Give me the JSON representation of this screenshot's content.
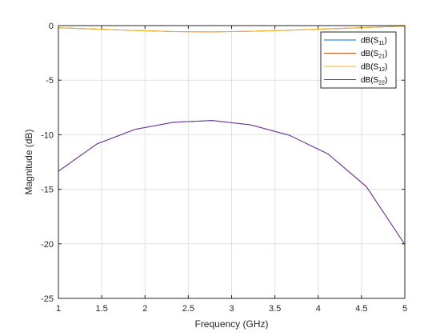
{
  "chart_data": {
    "type": "line",
    "title": "",
    "xlabel": "Frequency (GHz)",
    "ylabel": "Magnitude (dB)",
    "xlim": [
      1,
      5
    ],
    "ylim": [
      -25,
      0
    ],
    "x_ticks": [
      "1",
      "1.5",
      "2",
      "2.5",
      "3",
      "3.5",
      "4",
      "4.5",
      "5"
    ],
    "y_ticks": [
      "0",
      "-5",
      "-10",
      "-15",
      "-20",
      "-25"
    ],
    "grid": true,
    "legend_position": "top-right",
    "x": [
      1.0,
      1.444,
      1.889,
      2.333,
      2.778,
      3.222,
      3.667,
      4.111,
      4.556,
      5.0
    ],
    "series": [
      {
        "name": "dB(S11)",
        "color": "#0072BD",
        "values": [
          -13.35,
          -10.85,
          -9.5,
          -8.85,
          -8.7,
          -9.1,
          -10.05,
          -11.75,
          -14.75,
          -20.05
        ]
      },
      {
        "name": "dB(S21)",
        "color": "#D95319",
        "values": [
          -0.2,
          -0.32,
          -0.45,
          -0.55,
          -0.58,
          -0.52,
          -0.42,
          -0.3,
          -0.17,
          -0.05
        ]
      },
      {
        "name": "dB(S12)",
        "color": "#EDB120",
        "values": [
          -0.2,
          -0.32,
          -0.45,
          -0.55,
          -0.58,
          -0.52,
          -0.42,
          -0.3,
          -0.17,
          -0.05
        ]
      },
      {
        "name": "dB(S22)",
        "color": "#7E2F8E",
        "values": [
          -13.35,
          -10.85,
          -9.5,
          -8.85,
          -8.7,
          -9.1,
          -10.05,
          -11.75,
          -14.75,
          -20.05
        ]
      }
    ],
    "legend": {
      "entries": [
        {
          "base": "dB(S",
          "sub": "11",
          "end": ")",
          "color": "#0072BD"
        },
        {
          "base": "dB(S",
          "sub": "21",
          "end": ")",
          "color": "#D95319"
        },
        {
          "base": "dB(S",
          "sub": "12",
          "end": ")",
          "color": "#EDB120"
        },
        {
          "base": "dB(S",
          "sub": "22",
          "end": ")",
          "color": "#7E2F8E"
        }
      ]
    }
  }
}
